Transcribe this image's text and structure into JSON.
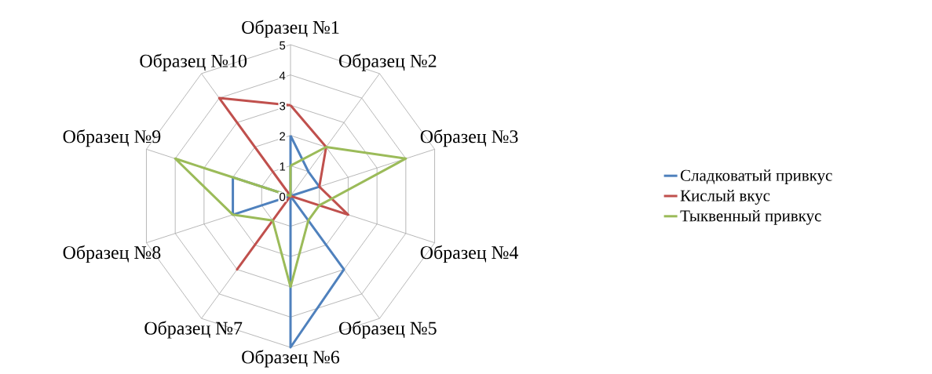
{
  "chart_data": {
    "type": "radar",
    "categories": [
      "Образец №1",
      "Образец №2",
      "Образец №3",
      "Образец №4",
      "Образец №5",
      "Образец №6",
      "Образец №7",
      "Образец №8",
      "Образец №9",
      "Образец №10"
    ],
    "series": [
      {
        "name": "Сладковатый привкус",
        "color": "#4f81bd",
        "values": [
          2,
          1,
          1,
          0,
          3,
          5,
          0,
          2,
          2,
          0
        ]
      },
      {
        "name": "Кислый вкус",
        "color": "#c0504d",
        "values": [
          3,
          2,
          1,
          2,
          0,
          0,
          3,
          0,
          0,
          4
        ]
      },
      {
        "name": "Тыквенный привкус",
        "color": "#9bbb59",
        "values": [
          1,
          2,
          4,
          1,
          1,
          3,
          1,
          2,
          4,
          0
        ]
      }
    ],
    "ylim": [
      0,
      5
    ],
    "yticks": [
      0,
      1,
      2,
      3,
      4,
      5
    ],
    "grid": true,
    "legend": "right"
  }
}
